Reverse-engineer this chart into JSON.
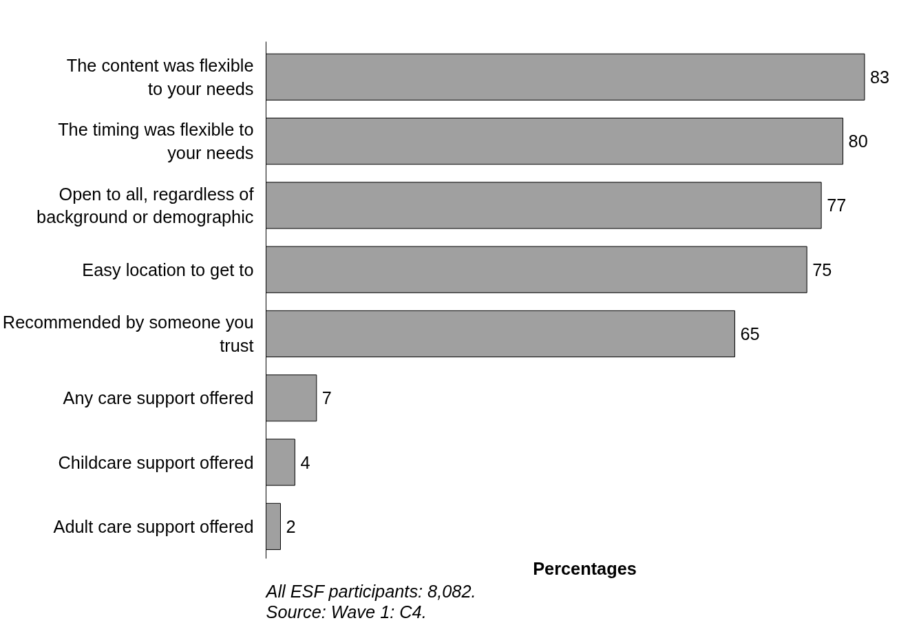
{
  "chart_data": {
    "type": "bar",
    "orientation": "horizontal",
    "xlabel": "Percentages",
    "categories": [
      "The content was flexible to your needs",
      "The timing was flexible to your needs",
      "Open to all, regardless of background or demographic",
      "Easy location to get to",
      "Recommended by someone you trust",
      "Any care support offered",
      "Childcare support offered",
      "Adult care support offered"
    ],
    "values": [
      83,
      80,
      77,
      75,
      65,
      7,
      4,
      2
    ],
    "color": "#a0a0a0",
    "data_labels": true,
    "grid": false,
    "tick_labels": "y",
    "annotations": [
      "All ESF participants: 8,082.",
      "Source: Wave 1: C4."
    ]
  }
}
